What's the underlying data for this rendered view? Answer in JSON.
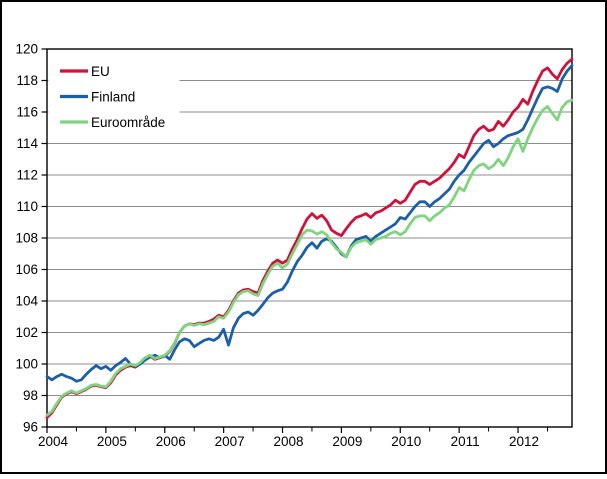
{
  "figure": {
    "background": "#ffffff",
    "border_color": "#000000",
    "gridline_color": "#8e8e8e"
  },
  "legend": {
    "position": "top-left-inside",
    "items": [
      {
        "label": "EU",
        "color": "#d1113a"
      },
      {
        "label": "Finland",
        "color": "#1a5fa8"
      },
      {
        "label": "Euroområde",
        "color": "#7ed57e"
      }
    ]
  },
  "chart_data": {
    "type": "line",
    "title": "",
    "xlabel": "",
    "ylabel": "",
    "x_unit": "month",
    "x_start": "2004-01",
    "x_end": "2012-12",
    "x_tick_labels": [
      "2004",
      "2005",
      "2006",
      "2007",
      "2008",
      "2009",
      "2010",
      "2011",
      "2012"
    ],
    "ylim": [
      96,
      120
    ],
    "y_tick_step": 2,
    "y_tick_labels": [
      "96",
      "98",
      "100",
      "102",
      "104",
      "106",
      "108",
      "110",
      "112",
      "114",
      "116",
      "118",
      "120"
    ],
    "grid": "horizontal",
    "legend_position": "top-left-inside",
    "series": [
      {
        "name": "EU",
        "color": "#d1113a",
        "values": [
          96.6,
          96.9,
          97.4,
          97.9,
          98.1,
          98.25,
          98.1,
          98.25,
          98.4,
          98.6,
          98.65,
          98.55,
          98.5,
          98.8,
          99.3,
          99.6,
          99.8,
          99.9,
          99.8,
          100.0,
          100.35,
          100.5,
          100.3,
          100.4,
          100.5,
          100.8,
          101.3,
          102.0,
          102.4,
          102.55,
          102.5,
          102.6,
          102.6,
          102.7,
          102.85,
          103.1,
          103.0,
          103.4,
          104.0,
          104.5,
          104.7,
          104.75,
          104.6,
          104.5,
          105.3,
          105.9,
          106.4,
          106.6,
          106.4,
          106.6,
          107.3,
          107.9,
          108.6,
          109.2,
          109.55,
          109.25,
          109.45,
          109.1,
          108.5,
          108.3,
          108.15,
          108.6,
          109.0,
          109.3,
          109.4,
          109.55,
          109.3,
          109.6,
          109.7,
          109.9,
          110.1,
          110.4,
          110.2,
          110.4,
          110.9,
          111.4,
          111.6,
          111.6,
          111.4,
          111.6,
          111.8,
          112.1,
          112.4,
          112.8,
          113.3,
          113.1,
          113.8,
          114.5,
          114.9,
          115.1,
          114.8,
          114.9,
          115.4,
          115.1,
          115.5,
          116.0,
          116.3,
          116.8,
          116.5,
          117.3,
          118.0,
          118.6,
          118.8,
          118.4,
          118.1,
          118.7,
          119.1,
          119.35
        ]
      },
      {
        "name": "Finland",
        "color": "#1a5fa8",
        "values": [
          99.2,
          99.0,
          99.2,
          99.35,
          99.2,
          99.1,
          98.9,
          99.0,
          99.35,
          99.65,
          99.9,
          99.7,
          99.85,
          99.6,
          99.9,
          100.1,
          100.35,
          100.0,
          99.85,
          100.0,
          100.25,
          100.45,
          100.55,
          100.4,
          100.55,
          100.3,
          100.9,
          101.4,
          101.6,
          101.5,
          101.1,
          101.3,
          101.5,
          101.6,
          101.5,
          101.7,
          102.2,
          101.2,
          102.3,
          102.9,
          103.2,
          103.3,
          103.1,
          103.4,
          103.8,
          104.2,
          104.5,
          104.65,
          104.75,
          105.2,
          105.9,
          106.5,
          106.9,
          107.4,
          107.7,
          107.35,
          107.8,
          107.95,
          107.8,
          107.4,
          107.0,
          106.8,
          107.5,
          107.9,
          108.0,
          108.1,
          107.8,
          108.1,
          108.3,
          108.5,
          108.7,
          108.9,
          109.3,
          109.2,
          109.6,
          110.0,
          110.3,
          110.3,
          110.0,
          110.3,
          110.5,
          110.8,
          111.1,
          111.6,
          112.0,
          112.3,
          112.8,
          113.2,
          113.6,
          114.0,
          114.2,
          113.8,
          114.0,
          114.3,
          114.5,
          114.6,
          114.7,
          114.9,
          115.5,
          116.2,
          116.9,
          117.5,
          117.6,
          117.5,
          117.3,
          118.1,
          118.6,
          118.95
        ]
      },
      {
        "name": "Euroområde",
        "color": "#7ed57e",
        "values": [
          96.75,
          97.0,
          97.5,
          97.95,
          98.15,
          98.3,
          98.15,
          98.3,
          98.45,
          98.65,
          98.7,
          98.6,
          98.55,
          98.9,
          99.4,
          99.7,
          99.85,
          100.0,
          99.9,
          100.1,
          100.4,
          100.55,
          100.35,
          100.45,
          100.55,
          100.85,
          101.35,
          102.0,
          102.4,
          102.55,
          102.45,
          102.55,
          102.5,
          102.6,
          102.7,
          103.0,
          102.9,
          103.3,
          103.9,
          104.4,
          104.6,
          104.65,
          104.45,
          104.35,
          105.1,
          105.7,
          106.2,
          106.4,
          106.1,
          106.35,
          107.0,
          107.6,
          108.2,
          108.5,
          108.45,
          108.25,
          108.4,
          108.2,
          107.7,
          107.3,
          107.1,
          106.8,
          107.4,
          107.7,
          107.8,
          107.9,
          107.6,
          107.9,
          108.0,
          108.1,
          108.3,
          108.4,
          108.2,
          108.4,
          108.9,
          109.3,
          109.4,
          109.4,
          109.1,
          109.4,
          109.6,
          109.9,
          110.1,
          110.6,
          111.2,
          111.0,
          111.7,
          112.3,
          112.6,
          112.7,
          112.4,
          112.6,
          113.0,
          112.6,
          113.1,
          113.8,
          114.3,
          113.5,
          114.3,
          115.0,
          115.6,
          116.1,
          116.35,
          115.9,
          115.5,
          116.3,
          116.65,
          116.75
        ]
      }
    ]
  }
}
